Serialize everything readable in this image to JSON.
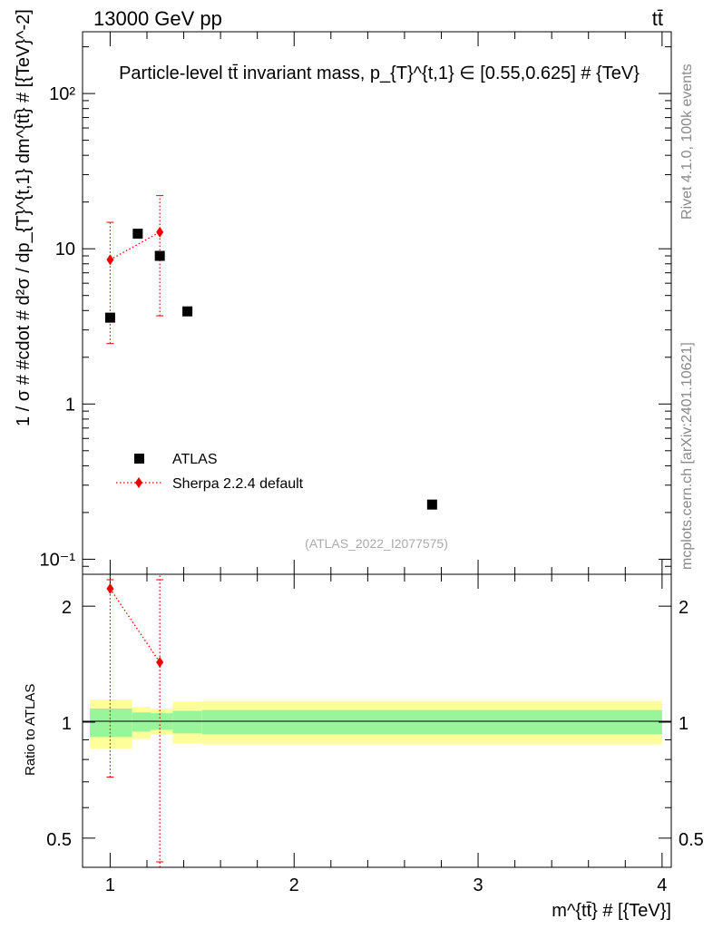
{
  "header": {
    "energy_label": "13000 GeV pp",
    "process_label": "tt̄"
  },
  "side_text": {
    "rivet": "Rivet 4.1.0,  100k events",
    "mcplots": "mcplots.cern.ch [arXiv:2401.10621]"
  },
  "chart_data": [
    {
      "type": "scatter",
      "panel": "main",
      "title": "Particle-level tt̄ invariant mass, p_{T}^{t,1} ∈ [0.55,0.625] # {TeV}",
      "ylabel": "1 / σ # #cdot # d²σ / dp_{T}^{t,1} dm^{tt̄} # [{TeV}^-2]",
      "xlabel": "m^{tt̄} # [{TeV}]",
      "x_scale": "linear",
      "y_scale": "log",
      "xlim": [
        0.85,
        4.05
      ],
      "ylim": [
        0.08,
        250
      ],
      "y_ticks": [
        {
          "value": 0.1,
          "label": "10⁻¹"
        },
        {
          "value": 1,
          "label": "1"
        },
        {
          "value": 10,
          "label": "10"
        },
        {
          "value": 100,
          "label": "10²"
        }
      ],
      "watermark": "(ATLAS_2022_I2077575)",
      "legend_position": "bottom-left",
      "series": [
        {
          "name": "ATLAS",
          "style": "black-square-markers",
          "color": "#000000",
          "points": [
            {
              "x": 1.0,
              "y": 3.6
            },
            {
              "x": 1.15,
              "y": 12.5
            },
            {
              "x": 1.27,
              "y": 9.0
            },
            {
              "x": 1.42,
              "y": 3.95
            },
            {
              "x": 2.75,
              "y": 0.225
            }
          ]
        },
        {
          "name": "Sherpa 2.2.4 default",
          "style": "red-diamond-dotted-line",
          "color": "#ee0000",
          "points": [
            {
              "x": 1.0,
              "y": 8.5,
              "ylo": 2.45,
              "yhi": 14.8
            },
            {
              "x": 1.27,
              "y": 12.8,
              "ylo": 3.7,
              "yhi": 22.0
            }
          ]
        }
      ]
    },
    {
      "type": "line",
      "panel": "ratio",
      "ylabel": "Ratio to ATLAS",
      "xlabel": "m^{tt̄} # [{TeV}]",
      "x_scale": "linear",
      "y_scale": "log",
      "xlim": [
        0.85,
        4.05
      ],
      "ylim": [
        0.42,
        2.42
      ],
      "x_ticks": [
        {
          "value": 1,
          "label": "1"
        },
        {
          "value": 2,
          "label": "2"
        },
        {
          "value": 3,
          "label": "3"
        },
        {
          "value": 4,
          "label": "4"
        }
      ],
      "y_ticks": [
        {
          "value": 0.5,
          "label": "0.5"
        },
        {
          "value": 1,
          "label": "1"
        },
        {
          "value": 2,
          "label": "2"
        }
      ],
      "band_colors": {
        "stat": "#99f599",
        "total": "#ffff99"
      },
      "uncertainty_bands": [
        {
          "x0": 0.89,
          "x1": 1.12,
          "inner_lo": 0.915,
          "inner_hi": 1.085,
          "outer_lo": 0.855,
          "outer_hi": 1.145
        },
        {
          "x0": 1.12,
          "x1": 1.22,
          "inner_lo": 0.945,
          "inner_hi": 1.06,
          "outer_lo": 0.905,
          "outer_hi": 1.095
        },
        {
          "x0": 1.22,
          "x1": 1.34,
          "inner_lo": 0.955,
          "inner_hi": 1.055,
          "outer_lo": 0.93,
          "outer_hi": 1.085
        },
        {
          "x0": 1.34,
          "x1": 1.5,
          "inner_lo": 0.935,
          "inner_hi": 1.07,
          "outer_lo": 0.88,
          "outer_hi": 1.13
        },
        {
          "x0": 1.5,
          "x1": 4.0,
          "inner_lo": 0.93,
          "inner_hi": 1.075,
          "outer_lo": 0.875,
          "outer_hi": 1.135
        }
      ],
      "series": [
        {
          "name": "Sherpa 2.2.4 default",
          "color": "#ee0000",
          "points": [
            {
              "x": 1.0,
              "y": 2.22,
              "ylo": 0.72,
              "yhi": 2.45
            },
            {
              "x": 1.27,
              "y": 1.43,
              "ylo": 0.41,
              "yhi": 2.45
            }
          ]
        }
      ]
    }
  ]
}
